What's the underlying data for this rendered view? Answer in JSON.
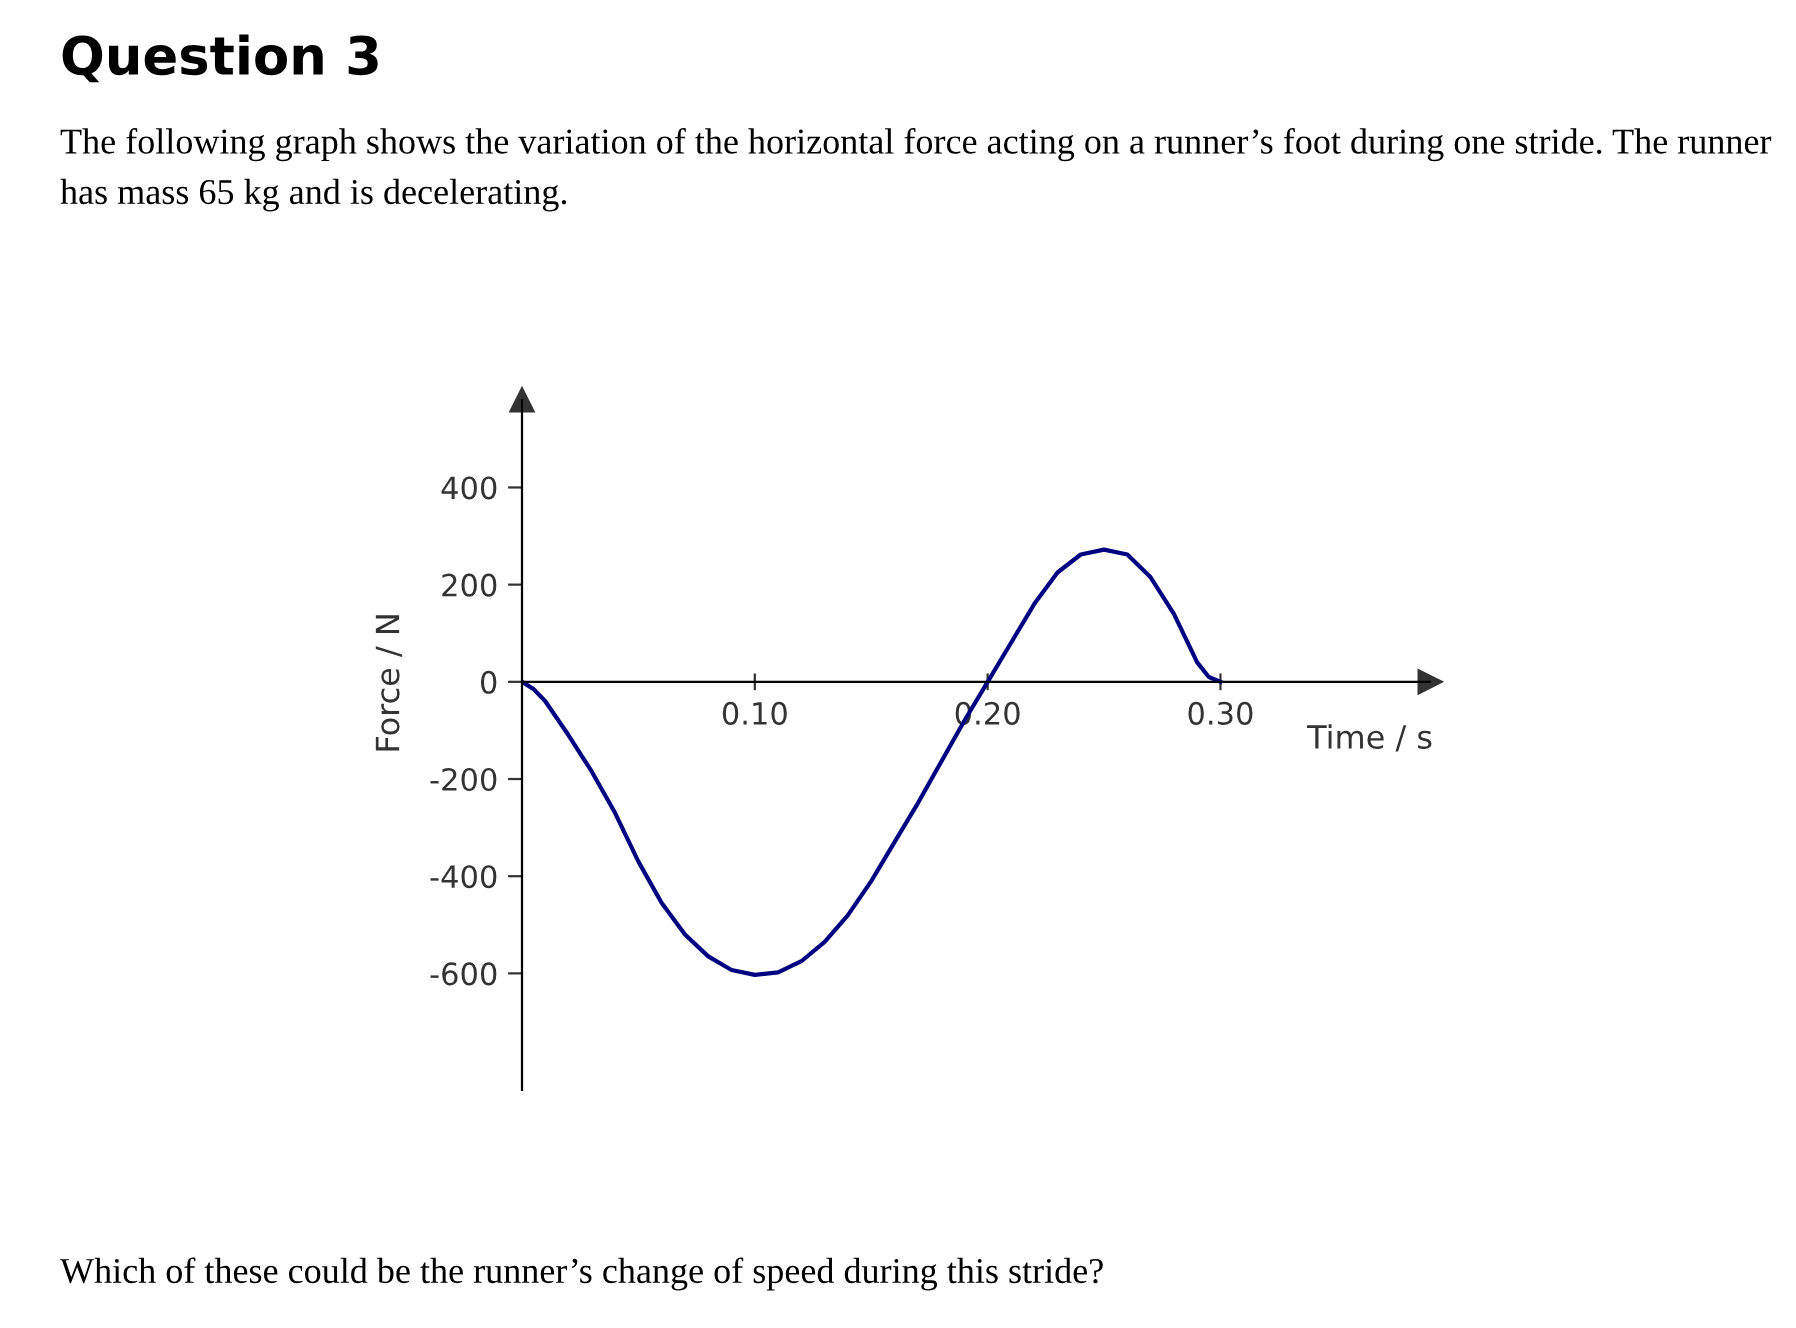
{
  "chart_data": {
    "type": "line",
    "title": "Question 3",
    "subtitle": "The following graph shows the variation of the horizontal force acting on a runner’s foot during one stride. The runner has mass 65 kg and is decelerating.",
    "annotations": [
      "Which of these could be the runner’s change of speed during this stride?"
    ],
    "xlabel": "Time / s",
    "ylabel": "Force / N",
    "x": [
      0,
      0.005,
      0.01,
      0.02,
      0.03,
      0.04,
      0.05,
      0.06,
      0.07,
      0.08,
      0.09,
      0.1,
      0.11,
      0.12,
      0.13,
      0.14,
      0.15,
      0.16,
      0.17,
      0.18,
      0.19,
      0.2,
      0.21,
      0.22,
      0.23,
      0.24,
      0.25,
      0.26,
      0.27,
      0.28,
      0.285,
      0.29,
      0.295,
      0.3
    ],
    "series": [
      {
        "color": "#000080",
        "values": [
          0,
          -15,
          -40,
          -110,
          -185,
          -270,
          -370,
          -455,
          -520,
          -565,
          -593,
          -603,
          -598,
          -575,
          -535,
          -480,
          -410,
          -330,
          -250,
          -165,
          -80,
          0,
          80,
          160,
          225,
          262,
          272,
          262,
          215,
          140,
          90,
          40,
          10,
          0
        ]
      }
    ],
    "xlim": [
      0,
      0.39
    ],
    "ylim": [
      -840,
      580
    ],
    "xticks": [
      {
        "value": 0.1,
        "label": "0.10"
      },
      {
        "value": 0.2,
        "label": "0.20"
      },
      {
        "value": 0.3,
        "label": "0.30"
      }
    ],
    "yticks": [
      -600,
      -400,
      -200,
      0,
      200,
      400
    ],
    "grid": false,
    "legend": false
  }
}
